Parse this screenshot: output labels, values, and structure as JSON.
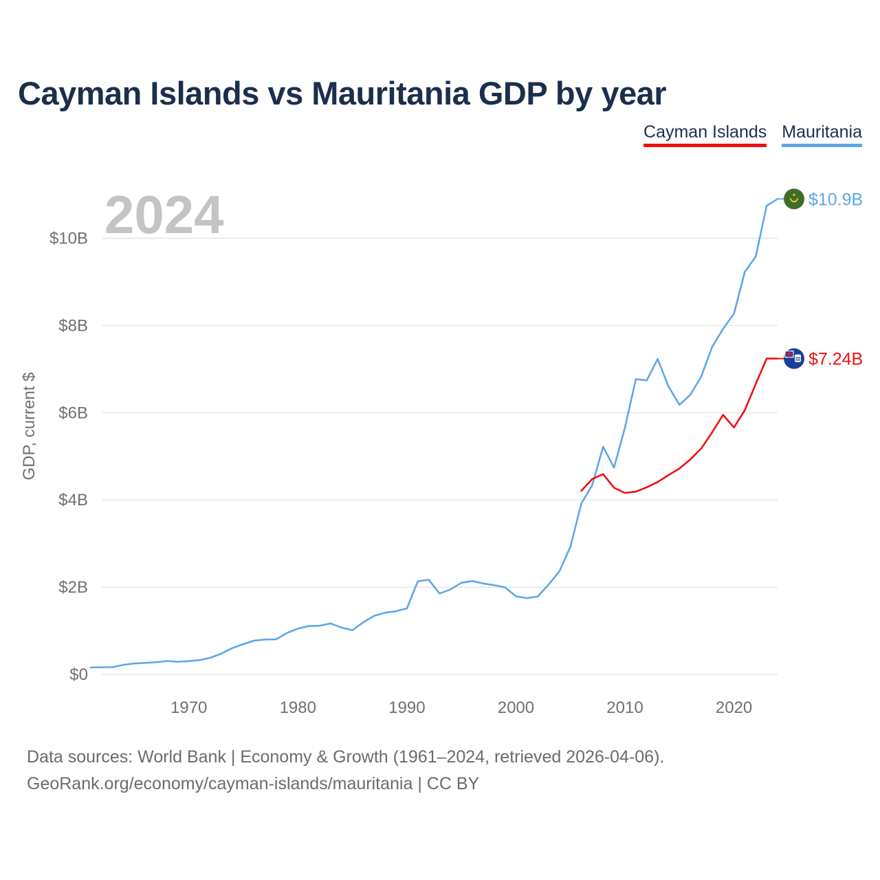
{
  "header": {
    "title": "Cayman Islands vs Mauritania GDP by year"
  },
  "legend": {
    "items": [
      "Cayman Islands",
      "Mauritania"
    ]
  },
  "colors": {
    "cayman": "#ef0f12",
    "mauritania": "#5fa6e8",
    "title": "#1b2f4d",
    "grid": "#e6e6e6",
    "watermark": "#c4c4c4"
  },
  "chart_data": {
    "type": "line",
    "title": "Cayman Islands vs Mauritania GDP by year",
    "current_year": "2024",
    "ylabel": "GDP, current $",
    "xlabel": "",
    "xlim": [
      1961,
      2024
    ],
    "ylim": [
      0,
      11000000000
    ],
    "x_ticks": [
      1970,
      1980,
      1990,
      2000,
      2010,
      2020
    ],
    "y_ticks": [
      {
        "value": 0,
        "label": "$0"
      },
      {
        "value": 2000000000,
        "label": "$2B"
      },
      {
        "value": 4000000000,
        "label": "$4B"
      },
      {
        "value": 6000000000,
        "label": "$6B"
      },
      {
        "value": 8000000000,
        "label": "$8B"
      },
      {
        "value": 10000000000,
        "label": "$10B"
      }
    ],
    "grid": true,
    "series": [
      {
        "name": "Cayman Islands",
        "color": "#ef0f12",
        "end_label": "$7.24B",
        "flag": "cayman-islands-flag",
        "x": [
          2006,
          2007,
          2008,
          2009,
          2010,
          2011,
          2012,
          2013,
          2014,
          2015,
          2016,
          2017,
          2018,
          2019,
          2020,
          2021,
          2022,
          2023,
          2024
        ],
        "y": [
          4210000000,
          4480000000,
          4590000000,
          4280000000,
          4160000000,
          4190000000,
          4290000000,
          4410000000,
          4570000000,
          4720000000,
          4930000000,
          5180000000,
          5550000000,
          5950000000,
          5660000000,
          6060000000,
          6660000000,
          7240000000,
          7240000000
        ]
      },
      {
        "name": "Mauritania",
        "color": "#5fa6e8",
        "end_label": "$10.9B",
        "flag": "mauritania-flag",
        "x": [
          1961,
          1962,
          1963,
          1964,
          1965,
          1966,
          1967,
          1968,
          1969,
          1970,
          1971,
          1972,
          1973,
          1974,
          1975,
          1976,
          1977,
          1978,
          1979,
          1980,
          1981,
          1982,
          1983,
          1984,
          1985,
          1986,
          1987,
          1988,
          1989,
          1990,
          1991,
          1992,
          1993,
          1994,
          1995,
          1996,
          1997,
          1998,
          1999,
          2000,
          2001,
          2002,
          2003,
          2004,
          2005,
          2006,
          2007,
          2008,
          2009,
          2010,
          2011,
          2012,
          2013,
          2014,
          2015,
          2016,
          2017,
          2018,
          2019,
          2020,
          2021,
          2022,
          2023,
          2024
        ],
        "y": [
          160000000,
          165000000,
          165000000,
          220000000,
          250000000,
          265000000,
          280000000,
          305000000,
          290000000,
          305000000,
          330000000,
          385000000,
          480000000,
          605000000,
          695000000,
          775000000,
          800000000,
          805000000,
          950000000,
          1050000000,
          1110000000,
          1115000000,
          1170000000,
          1075000000,
          1015000000,
          1195000000,
          1345000000,
          1415000000,
          1450000000,
          1515000000,
          2135000000,
          2170000000,
          1855000000,
          1950000000,
          2100000000,
          2140000000,
          2085000000,
          2045000000,
          1995000000,
          1790000000,
          1750000000,
          1785000000,
          2060000000,
          2370000000,
          2930000000,
          3920000000,
          4340000000,
          5220000000,
          4740000000,
          5660000000,
          6770000000,
          6740000000,
          7230000000,
          6600000000,
          6180000000,
          6410000000,
          6830000000,
          7510000000,
          7920000000,
          8270000000,
          9230000000,
          9580000000,
          10740000000,
          10900000000
        ]
      }
    ]
  },
  "footer": {
    "line1": "Data sources: World Bank | Economy & Growth (1961–2024, retrieved 2026-04-06).",
    "line2": "GeoRank.org/economy/cayman-islands/mauritania | CC BY"
  }
}
